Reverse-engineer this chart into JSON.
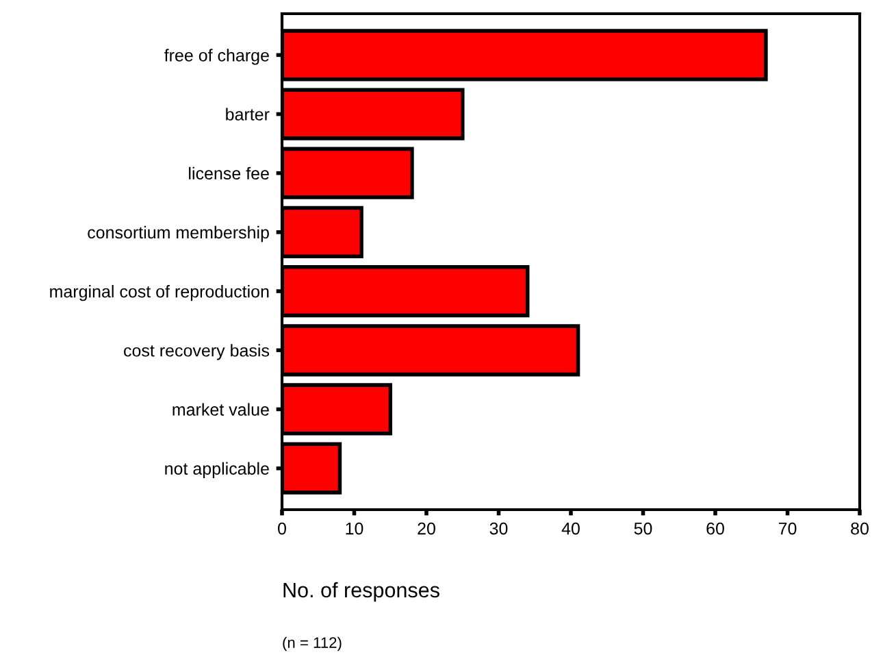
{
  "chart_data": {
    "type": "bar",
    "orientation": "horizontal",
    "xlabel": "No. of responses",
    "annotations": [
      "(n = 112)"
    ],
    "categories": [
      "free of charge",
      "barter",
      "license fee",
      "consortium membership",
      "marginal cost of reproduction",
      "cost recovery basis",
      "market value",
      "not applicable"
    ],
    "values": [
      67,
      25,
      18,
      11,
      34,
      41,
      15,
      8
    ],
    "color": "#ff0000",
    "xlim": [
      0,
      80
    ],
    "xticks": [
      0,
      10,
      20,
      30,
      40,
      50,
      60,
      70,
      80
    ],
    "grid": false,
    "legend": false
  }
}
